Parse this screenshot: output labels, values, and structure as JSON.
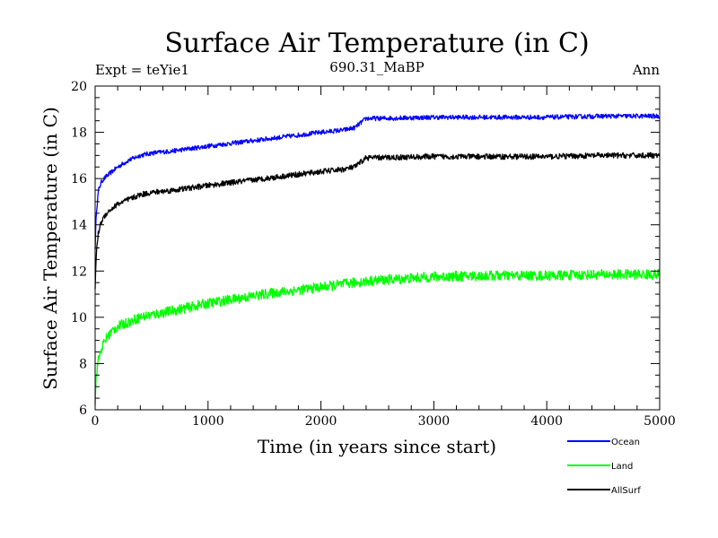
{
  "chart_data": {
    "type": "line",
    "title": "Surface Air Temperature (in C)",
    "subtitle_left": "Expt = teYie1",
    "subtitle_center": "690.31_MaBP",
    "subtitle_right": "Ann",
    "xlabel": "Time (in years since start)",
    "ylabel": "Surface Air Temperature (in C)",
    "xlim": [
      0,
      5000
    ],
    "ylim": [
      6,
      20
    ],
    "x_ticks": [
      0,
      1000,
      2000,
      3000,
      4000,
      5000
    ],
    "y_ticks": [
      6,
      8,
      10,
      12,
      14,
      16,
      18,
      20
    ],
    "x_tick_labels": [
      "0",
      "1000",
      "2000",
      "3000",
      "4000",
      "5000"
    ],
    "y_tick_labels": [
      "6",
      "8",
      "10",
      "12",
      "14",
      "16",
      "18",
      "20"
    ],
    "grid": false,
    "legend_position": "bottom-right, outside plot",
    "series": [
      {
        "name": "Ocean",
        "color": "#0000ff",
        "noise": 0.1,
        "x": [
          0,
          10,
          30,
          60,
          100,
          150,
          200,
          300,
          400,
          500,
          700,
          1000,
          1500,
          2000,
          2200,
          2300,
          2350,
          2400,
          2500,
          3000,
          3500,
          4000,
          4500,
          5000
        ],
        "values": [
          13.0,
          14.5,
          15.5,
          15.9,
          16.1,
          16.3,
          16.5,
          16.8,
          17.0,
          17.1,
          17.2,
          17.4,
          17.7,
          18.0,
          18.1,
          18.2,
          18.4,
          18.6,
          18.6,
          18.65,
          18.65,
          18.65,
          18.7,
          18.7
        ]
      },
      {
        "name": "Land",
        "color": "#00ff00",
        "noise": 0.22,
        "x": [
          0,
          10,
          30,
          60,
          100,
          150,
          200,
          300,
          400,
          500,
          700,
          1000,
          1500,
          2000,
          2300,
          2500,
          3000,
          3500,
          4000,
          4500,
          5000
        ],
        "values": [
          6.3,
          7.5,
          8.2,
          8.7,
          9.1,
          9.4,
          9.6,
          9.8,
          10.0,
          10.1,
          10.3,
          10.6,
          11.0,
          11.3,
          11.5,
          11.6,
          11.75,
          11.8,
          11.8,
          11.85,
          11.85
        ]
      },
      {
        "name": "AllSurf",
        "color": "#000000",
        "noise": 0.12,
        "x": [
          0,
          10,
          30,
          60,
          100,
          150,
          200,
          300,
          400,
          500,
          700,
          1000,
          1500,
          2000,
          2200,
          2300,
          2350,
          2400,
          2500,
          3000,
          3500,
          4000,
          4500,
          5000
        ],
        "values": [
          11.2,
          12.8,
          13.7,
          14.2,
          14.5,
          14.7,
          14.9,
          15.1,
          15.3,
          15.4,
          15.5,
          15.7,
          16.0,
          16.3,
          16.4,
          16.5,
          16.7,
          16.9,
          16.9,
          16.95,
          16.95,
          16.95,
          17.0,
          17.0
        ]
      }
    ]
  }
}
